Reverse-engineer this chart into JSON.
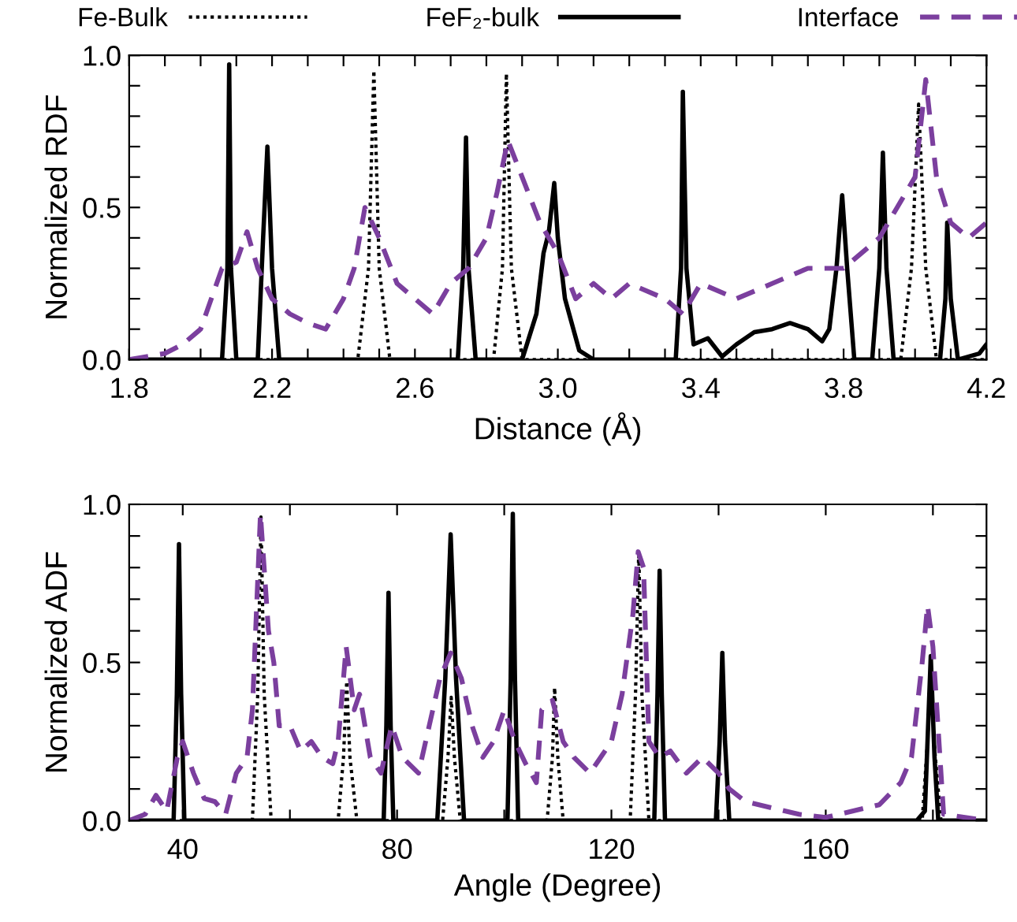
{
  "chart_data": [
    {
      "type": "line",
      "xlabel": "Distance (Å)",
      "ylabel": "Normalized RDF",
      "legend": "top",
      "grid": false,
      "xlim": [
        1.8,
        4.2
      ],
      "ylim": [
        0,
        1.0
      ],
      "xticks": [
        1.8,
        {
          "value": 1.9,
          "label": null
        },
        {
          "value": 2.0,
          "label": null
        },
        {
          "value": 2.1,
          "label": null
        },
        2.2,
        {
          "value": 2.3,
          "label": null
        },
        {
          "value": 2.4,
          "label": null
        },
        {
          "value": 2.5,
          "label": null
        },
        2.6,
        {
          "value": 2.7,
          "label": null
        },
        {
          "value": 2.8,
          "label": null
        },
        {
          "value": 2.9,
          "label": null
        },
        {
          "value": 3.0,
          "label": "3.0"
        },
        {
          "value": 3.1,
          "label": null
        },
        {
          "value": 3.2,
          "label": null
        },
        {
          "value": 3.3,
          "label": null
        },
        3.4,
        {
          "value": 3.5,
          "label": null
        },
        {
          "value": 3.6,
          "label": null
        },
        {
          "value": 3.7,
          "label": null
        },
        3.8,
        {
          "value": 3.9,
          "label": null
        },
        {
          "value": 4.0,
          "label": null
        },
        {
          "value": 4.1,
          "label": null
        },
        4.2
      ],
      "yticks": [
        {
          "value": 0,
          "label": "0.0"
        },
        {
          "value": 0.1,
          "label": null
        },
        {
          "value": 0.2,
          "label": null
        },
        {
          "value": 0.3,
          "label": null
        },
        {
          "value": 0.4,
          "label": null
        },
        0.5,
        {
          "value": 0.6,
          "label": null
        },
        {
          "value": 0.7,
          "label": null
        },
        {
          "value": 0.8,
          "label": null
        },
        {
          "value": 0.9,
          "label": null
        },
        {
          "value": 1.0,
          "label": "1.0"
        }
      ],
      "series": [
        {
          "name": "Fe-Bulk",
          "color": "#000000",
          "line_style": "dotted",
          "x": [
            1.8,
            2.44,
            2.47,
            2.485,
            2.5,
            2.53,
            2.82,
            2.845,
            2.856,
            2.87,
            2.9,
            3.96,
            3.99,
            4.01,
            4.03,
            4.06,
            4.2
          ],
          "values": [
            0,
            0,
            0.3,
            0.95,
            0.3,
            0,
            0,
            0.3,
            0.94,
            0.3,
            0,
            0,
            0.3,
            0.84,
            0.3,
            0,
            0
          ]
        },
        {
          "name": "FeF₂-bulk",
          "color": "#000000",
          "line_style": "solid",
          "x": [
            1.8,
            2.06,
            2.075,
            2.08,
            2.085,
            2.1,
            2.16,
            2.175,
            2.187,
            2.2,
            2.22,
            2.72,
            2.735,
            2.743,
            2.75,
            2.77,
            2.9,
            2.94,
            2.96,
            2.975,
            2.99,
            3.0,
            3.02,
            3.06,
            3.1,
            3.33,
            3.345,
            3.35,
            3.36,
            3.38,
            3.42,
            3.46,
            3.5,
            3.55,
            3.6,
            3.65,
            3.7,
            3.74,
            3.76,
            3.78,
            3.796,
            3.81,
            3.83,
            3.88,
            3.9,
            3.91,
            3.92,
            3.94,
            4.07,
            4.085,
            4.09,
            4.1,
            4.12,
            4.18,
            4.2
          ],
          "values": [
            0,
            0,
            0.3,
            0.97,
            0.3,
            0,
            0,
            0.4,
            0.7,
            0.3,
            0,
            0,
            0.3,
            0.73,
            0.3,
            0,
            0,
            0.15,
            0.35,
            0.42,
            0.58,
            0.4,
            0.2,
            0.03,
            0,
            0,
            0.3,
            0.88,
            0.3,
            0.05,
            0.07,
            0.01,
            0.05,
            0.09,
            0.1,
            0.12,
            0.1,
            0.06,
            0.1,
            0.3,
            0.54,
            0.3,
            0,
            0,
            0.3,
            0.68,
            0.3,
            0,
            0,
            0.2,
            0.45,
            0.2,
            0,
            0.02,
            0.05
          ]
        },
        {
          "name": "Interface",
          "color": "#7b3f9e",
          "line_style": "dashed",
          "x": [
            1.8,
            1.9,
            1.95,
            2.0,
            2.03,
            2.06,
            2.1,
            2.13,
            2.16,
            2.2,
            2.25,
            2.3,
            2.35,
            2.4,
            2.43,
            2.46,
            2.5,
            2.55,
            2.6,
            2.65,
            2.7,
            2.75,
            2.8,
            2.83,
            2.86,
            2.9,
            2.95,
            3.0,
            3.05,
            3.1,
            3.15,
            3.2,
            3.3,
            3.35,
            3.4,
            3.5,
            3.6,
            3.7,
            3.8,
            3.9,
            3.95,
            4.0,
            4.03,
            4.06,
            4.1,
            4.15,
            4.2
          ],
          "values": [
            0,
            0.02,
            0.05,
            0.1,
            0.2,
            0.3,
            0.32,
            0.42,
            0.3,
            0.2,
            0.15,
            0.12,
            0.1,
            0.2,
            0.3,
            0.5,
            0.4,
            0.25,
            0.2,
            0.15,
            0.25,
            0.3,
            0.4,
            0.55,
            0.72,
            0.6,
            0.45,
            0.35,
            0.2,
            0.25,
            0.2,
            0.25,
            0.2,
            0.15,
            0.25,
            0.2,
            0.25,
            0.3,
            0.3,
            0.4,
            0.5,
            0.6,
            0.92,
            0.6,
            0.45,
            0.4,
            0.45
          ]
        }
      ]
    },
    {
      "type": "line",
      "xlabel": "Angle (Degree)",
      "ylabel": "Normalized ADF",
      "legend": false,
      "grid": false,
      "xlim": [
        30,
        190
      ],
      "ylim": [
        0,
        1.0
      ],
      "xticks": [
        40,
        {
          "value": 60,
          "label": null
        },
        80,
        {
          "value": 100,
          "label": null
        },
        120,
        {
          "value": 140,
          "label": null
        },
        160,
        {
          "value": 180,
          "label": null
        }
      ],
      "yticks": [
        {
          "value": 0,
          "label": "0.0"
        },
        {
          "value": 0.1,
          "label": null
        },
        {
          "value": 0.2,
          "label": null
        },
        {
          "value": 0.3,
          "label": null
        },
        {
          "value": 0.4,
          "label": null
        },
        0.5,
        {
          "value": 0.6,
          "label": null
        },
        {
          "value": 0.7,
          "label": null
        },
        {
          "value": 0.8,
          "label": null
        },
        {
          "value": 0.9,
          "label": null
        },
        {
          "value": 1.0,
          "label": "1.0"
        }
      ],
      "series": [
        {
          "color": "#000000",
          "line_style": "dotted",
          "x": [
            30,
            53,
            54,
            54.6,
            55.2,
            56.5,
            69,
            70,
            70.6,
            71.2,
            72.5,
            88.5,
            89.5,
            90.1,
            90.7,
            91.8,
            108,
            109,
            109.4,
            110,
            111,
            123.5,
            124.5,
            125.1,
            125.7,
            127,
            178,
            179,
            179.6,
            180.2,
            181.5,
            190
          ],
          "values": [
            0,
            0,
            0.4,
            0.96,
            0.4,
            0,
            0,
            0.2,
            0.44,
            0.2,
            0,
            0,
            0.2,
            0.39,
            0.2,
            0,
            0,
            0.2,
            0.42,
            0.2,
            0,
            0,
            0.4,
            0.85,
            0.4,
            0,
            0,
            0.25,
            0.5,
            0.25,
            0,
            0
          ]
        },
        {
          "color": "#000000",
          "line_style": "solid",
          "x": [
            30,
            38.3,
            38.9,
            39.3,
            39.7,
            40.3,
            77.5,
            78,
            78.4,
            78.8,
            79.3,
            87.5,
            89,
            90,
            91,
            92.5,
            100.6,
            101.2,
            101.6,
            102,
            102.6,
            128,
            128.6,
            129,
            129.4,
            130,
            139.5,
            140.2,
            140.7,
            141.2,
            142,
            177,
            178.5,
            179.6,
            180.3,
            181,
            190
          ],
          "values": [
            0,
            0,
            0.4,
            0.874,
            0.4,
            0,
            0,
            0.3,
            0.72,
            0.3,
            0,
            0,
            0.45,
            0.905,
            0.45,
            0,
            0,
            0.45,
            0.97,
            0.45,
            0,
            0,
            0.4,
            0.79,
            0.4,
            0,
            0,
            0.25,
            0.53,
            0.25,
            0,
            0,
            0.03,
            0.52,
            0.2,
            0,
            0
          ]
        },
        {
          "color": "#7b3f9e",
          "line_style": "dashed",
          "x": [
            30,
            33,
            35,
            37,
            39,
            40,
            42,
            44,
            46,
            48,
            50,
            52,
            53,
            54.5,
            56,
            57,
            58,
            60,
            62,
            64,
            66,
            68,
            69,
            70.5,
            72,
            73,
            75,
            77,
            79,
            81,
            84,
            86,
            88,
            90,
            92,
            94,
            96,
            98,
            100,
            102,
            104,
            106,
            107,
            109,
            111,
            113,
            116,
            118,
            120,
            122,
            124,
            125,
            126,
            127,
            129,
            131,
            134,
            137,
            140,
            142,
            145,
            150,
            155,
            160,
            165,
            170,
            174,
            176,
            178,
            179,
            180,
            182,
            190
          ],
          "values": [
            0,
            0.02,
            0.08,
            0.03,
            0.2,
            0.25,
            0.15,
            0.07,
            0.06,
            0.02,
            0.15,
            0.2,
            0.35,
            0.97,
            0.6,
            0.5,
            0.3,
            0.3,
            0.22,
            0.25,
            0.2,
            0.18,
            0.25,
            0.55,
            0.35,
            0.4,
            0.2,
            0.15,
            0.3,
            0.2,
            0.15,
            0.3,
            0.45,
            0.53,
            0.45,
            0.3,
            0.2,
            0.25,
            0.35,
            0.25,
            0.18,
            0.12,
            0.35,
            0.38,
            0.25,
            0.2,
            0.15,
            0.2,
            0.25,
            0.4,
            0.65,
            0.85,
            0.8,
            0.25,
            0.2,
            0.22,
            0.15,
            0.2,
            0.15,
            0.1,
            0.06,
            0.04,
            0.02,
            0.01,
            0.03,
            0.05,
            0.12,
            0.2,
            0.5,
            0.68,
            0.55,
            0.02,
            0
          ]
        }
      ]
    }
  ]
}
